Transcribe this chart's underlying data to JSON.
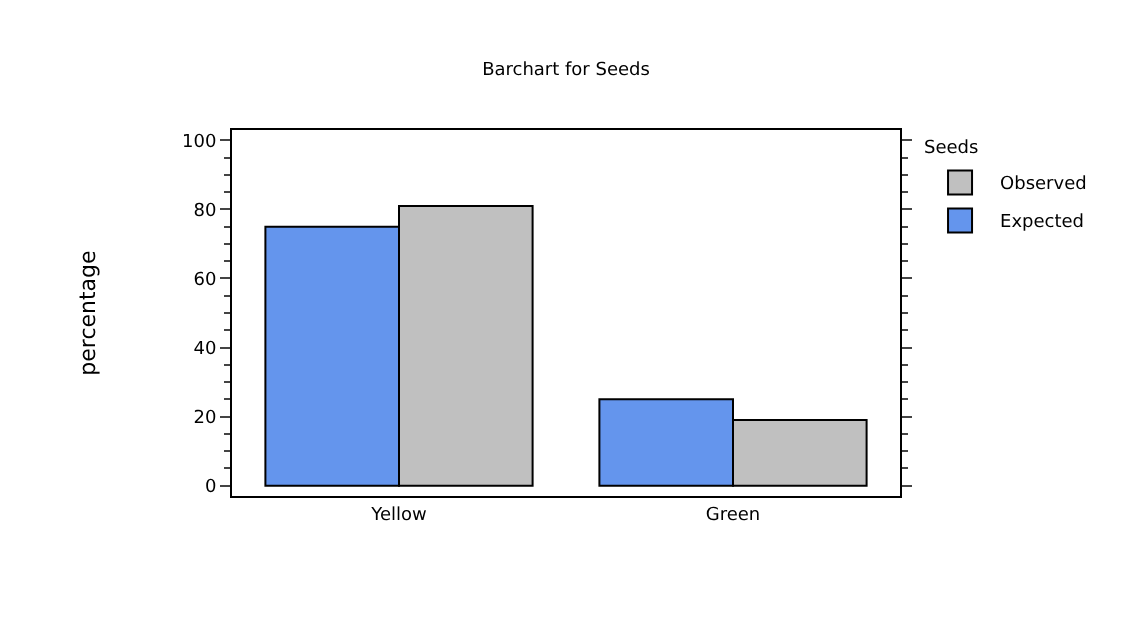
{
  "chart_data": {
    "type": "bar",
    "title": "Barchart for Seeds",
    "ylabel": "percentage",
    "legend_title": "Seeds",
    "categories": [
      "Yellow",
      "Green"
    ],
    "series": [
      {
        "name": "Expected",
        "color": "#6495ed",
        "values": [
          75,
          25
        ]
      },
      {
        "name": "Observed",
        "color": "#c0c0c0",
        "values": [
          81,
          19
        ]
      }
    ],
    "ylim": [
      -3,
      103
    ],
    "yticks": [
      0,
      20,
      40,
      60,
      80,
      100
    ],
    "grid": false,
    "legend": "right"
  }
}
